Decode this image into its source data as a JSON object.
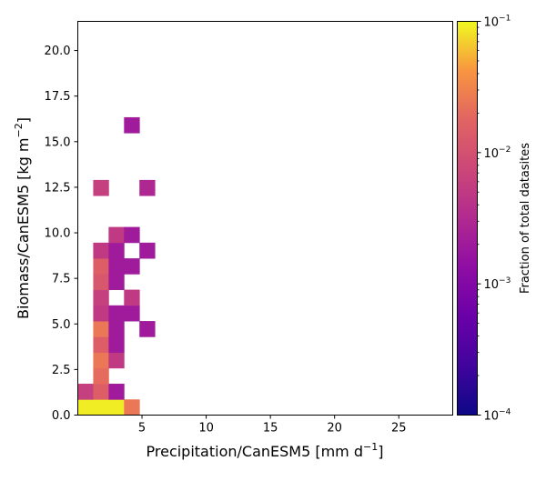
{
  "chart_data": {
    "type": "heatmap",
    "title": "",
    "xlabel": "Precipitation/CanESM5 [mm d",
    "xlabel_sup": "−1",
    "xlabel_tail": "]",
    "ylabel": "Biomass/CanESM5 [kg m",
    "ylabel_sup": "−2",
    "ylabel_tail": "]",
    "xlim": [
      0,
      29.2
    ],
    "ylim": [
      0,
      21.6
    ],
    "x_ticks": [
      5,
      10,
      15,
      20,
      25
    ],
    "x_tick_labels": [
      "5",
      "10",
      "15",
      "20",
      "25"
    ],
    "y_ticks": [
      0,
      2.5,
      5,
      7.5,
      10,
      12.5,
      15,
      17.5,
      20
    ],
    "y_tick_labels": [
      "0.0",
      "2.5",
      "5.0",
      "7.5",
      "10.0",
      "12.5",
      "15.0",
      "17.5",
      "20.0"
    ],
    "bin_width_x": 1.2,
    "bin_height_y": 0.86,
    "colorbar": {
      "label": "Fraction of total datasites",
      "scale": "log",
      "range": [
        0.0001,
        0.1
      ],
      "colormap": "plasma",
      "ticks": [
        {
          "value": 0.1,
          "base": "10",
          "exp": "−1"
        },
        {
          "value": 0.01,
          "base": "10",
          "exp": "−2"
        },
        {
          "value": 0.001,
          "base": "10",
          "exp": "−3"
        },
        {
          "value": 0.0001,
          "base": "10",
          "exp": "−4"
        }
      ]
    },
    "cells": [
      {
        "x": 0.0,
        "y": 0.0,
        "value": 0.09
      },
      {
        "x": 1.2,
        "y": 0.0,
        "value": 0.09
      },
      {
        "x": 2.4,
        "y": 0.0,
        "value": 0.09
      },
      {
        "x": 3.6,
        "y": 0.0,
        "value": 0.025
      },
      {
        "x": 0.0,
        "y": 0.86,
        "value": 0.006
      },
      {
        "x": 1.2,
        "y": 0.86,
        "value": 0.015
      },
      {
        "x": 2.4,
        "y": 0.86,
        "value": 0.002
      },
      {
        "x": 1.2,
        "y": 1.72,
        "value": 0.02
      },
      {
        "x": 1.2,
        "y": 2.58,
        "value": 0.025
      },
      {
        "x": 2.4,
        "y": 2.58,
        "value": 0.005
      },
      {
        "x": 1.2,
        "y": 3.44,
        "value": 0.015
      },
      {
        "x": 2.4,
        "y": 3.44,
        "value": 0.002
      },
      {
        "x": 1.2,
        "y": 4.3,
        "value": 0.025
      },
      {
        "x": 2.4,
        "y": 4.3,
        "value": 0.002
      },
      {
        "x": 4.8,
        "y": 4.3,
        "value": 0.002
      },
      {
        "x": 1.2,
        "y": 5.16,
        "value": 0.005
      },
      {
        "x": 2.4,
        "y": 5.16,
        "value": 0.002
      },
      {
        "x": 3.6,
        "y": 5.16,
        "value": 0.002
      },
      {
        "x": 1.2,
        "y": 6.02,
        "value": 0.006
      },
      {
        "x": 3.6,
        "y": 6.02,
        "value": 0.005
      },
      {
        "x": 1.2,
        "y": 6.88,
        "value": 0.012
      },
      {
        "x": 2.4,
        "y": 6.88,
        "value": 0.002
      },
      {
        "x": 1.2,
        "y": 7.74,
        "value": 0.015
      },
      {
        "x": 2.4,
        "y": 7.74,
        "value": 0.002
      },
      {
        "x": 3.6,
        "y": 7.74,
        "value": 0.002
      },
      {
        "x": 1.2,
        "y": 8.6,
        "value": 0.005
      },
      {
        "x": 2.4,
        "y": 8.6,
        "value": 0.002
      },
      {
        "x": 4.8,
        "y": 8.6,
        "value": 0.002
      },
      {
        "x": 2.4,
        "y": 9.46,
        "value": 0.005
      },
      {
        "x": 3.6,
        "y": 9.46,
        "value": 0.002
      },
      {
        "x": 1.2,
        "y": 12.04,
        "value": 0.006
      },
      {
        "x": 4.8,
        "y": 12.04,
        "value": 0.003
      },
      {
        "x": 3.6,
        "y": 15.48,
        "value": 0.002
      }
    ]
  }
}
